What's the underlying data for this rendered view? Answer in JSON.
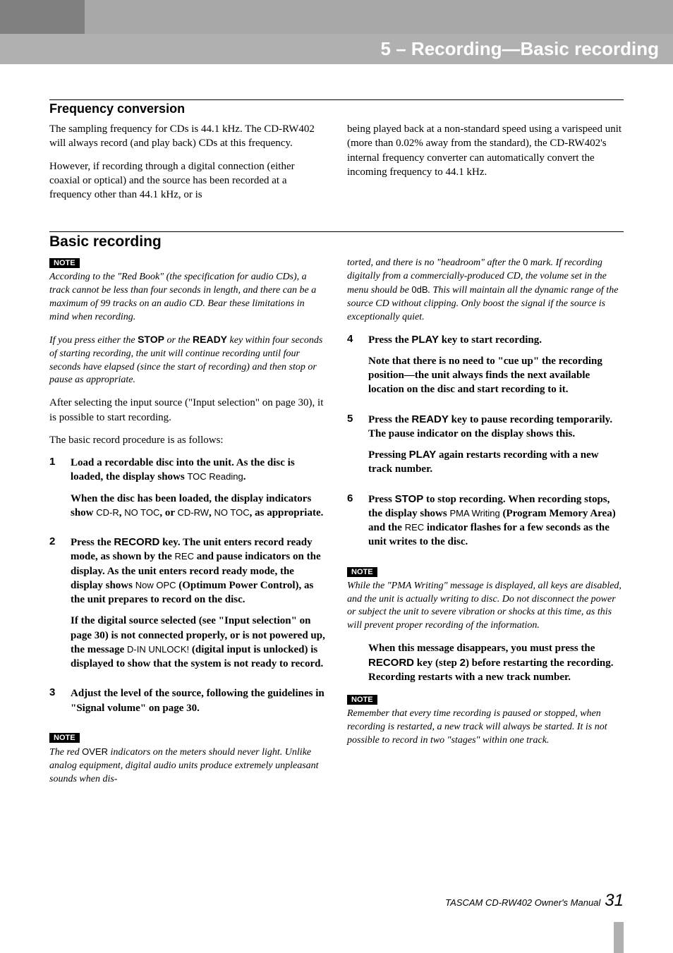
{
  "chapter": {
    "title": "5 – Recording—Basic recording"
  },
  "section1": {
    "heading": "Frequency conversion",
    "col1": {
      "p1": "The sampling frequency for CDs is 44.1 kHz. The CD-RW402 will always record (and play back) CDs at this frequency.",
      "p2": "However, if recording through a digital connection (either coaxial or optical) and the source has been recorded at a frequency other than 44.1 kHz, or is"
    },
    "col2": {
      "p1": "being played back at a non-standard speed using a varispeed unit (more than 0.02% away from the standard), the CD-RW402's internal frequency converter can automatically convert the incoming frequency to 44.1 kHz."
    }
  },
  "section2": {
    "heading": "Basic recording",
    "noteLabel": "NOTE",
    "col1": {
      "note1": "According to the \"Red Book\" (the specification for audio CDs), a track cannot be less than four seconds in length, and there can be a maximum of 99 tracks on an audio CD. Bear these limitations in mind when recording.",
      "note2_pre": "If you press either the ",
      "note2_stop": "STOP",
      "note2_mid": " or the ",
      "note2_ready": "READY",
      "note2_post": " key within four seconds of starting recording, the unit will continue recording until four seconds have elapsed (since the start of recording) and then stop or pause as appropriate.",
      "p1": "After selecting the input source (\"Input selection\" on page 30), it is possible to start recording.",
      "p2": "The basic record procedure is as follows:",
      "step1": {
        "num": "1",
        "t1a": "Load a recordable disc into the unit. As the disc is loaded, the display shows ",
        "t1b": "TOC Reading",
        "t1c": ".",
        "t2a": "When the disc has been loaded, the display indicators show ",
        "t2b": "CD-R",
        "t2c": ", ",
        "t2d": "NO TOC",
        "t2e": ", or ",
        "t2f": "CD-RW",
        "t2g": ", ",
        "t2h": "NO TOC",
        "t2i": ", as appropriate."
      },
      "step2": {
        "num": "2",
        "t1a": "Press the ",
        "t1b": "RECORD",
        "t1c": " key. The unit enters record ready mode, as shown by the ",
        "t1d": "REC",
        "t1e": " and pause indicators on the display. As the unit enters record ready mode, the display shows ",
        "t1f": "Now OPC",
        "t1g": " (Optimum Power Control), as the unit prepares to record on the disc.",
        "t2a": "If the digital source selected (see \"Input selection\" on page 30) is not connected properly, or is not powered up, the message ",
        "t2b": "D-IN UNLOCK!",
        "t2c": " (digital input is unlocked) is displayed to show that the system is not ready to record."
      },
      "step3": {
        "num": "3",
        "t1": "Adjust the level of the source, following the guidelines in \"Signal volume\" on page 30."
      },
      "note3_pre": "The red ",
      "note3_over": "OVER",
      "note3_post": " indicators on the meters should never light. Unlike analog equipment, digital audio units produce extremely unpleasant sounds when dis-"
    },
    "col2": {
      "note_cont_pre": "torted, and there is no \"headroom\" after the ",
      "note_cont_zero": "0",
      "note_cont_mid": " mark. If recording digitally from a commercially-produced CD, the volume set in the menu should be ",
      "note_cont_0db": "0dB",
      "note_cont_post": ". This will maintain all the dynamic range of the source CD without clipping. Only boost the signal if the source is exceptionally quiet.",
      "step4": {
        "num": "4",
        "t1a": "Press the ",
        "t1b": "PLAY",
        "t1c": " key to start recording.",
        "t2": "Note that there is no need to \"cue up\" the recording position—the unit always finds the next available location on the disc and start recording to it."
      },
      "step5": {
        "num": "5",
        "t1a": "Press the ",
        "t1b": "READY",
        "t1c": " key to pause recording temporarily. The pause indicator on the display shows this.",
        "t2a": "Pressing ",
        "t2b": "PLAY",
        "t2c": " again restarts recording with a new track number."
      },
      "step6": {
        "num": "6",
        "t1a": "Press ",
        "t1b": "STOP",
        "t1c": " to stop recording. When recording stops, the display shows ",
        "t1d": "PMA Writing",
        "t1e": " (Program Memory Area) and the ",
        "t1f": "REC",
        "t1g": " indicator flashes for a few seconds as the unit writes to the disc."
      },
      "note4": "While the \"PMA Writing\" message is displayed, all keys are disabled, and the unit is actually writing to disc. Do not disconnect the power or subject the unit to severe vibration or shocks at this time, as this will prevent proper recording of the information.",
      "post_pre": "When this message disappears, you must press the ",
      "post_rec": "RECORD",
      "post_mid": " key (step ",
      "post_step": "2",
      "post_end": ") before restarting the recording. Recording restarts with a new track number.",
      "note5": "Remember that every time recording is paused or stopped, when recording is restarted, a new track will always be started. It is not possible to record in two \"stages\" within one track."
    }
  },
  "footer": {
    "text": "TASCAM CD-RW402 Owner's Manual",
    "page": "31"
  }
}
